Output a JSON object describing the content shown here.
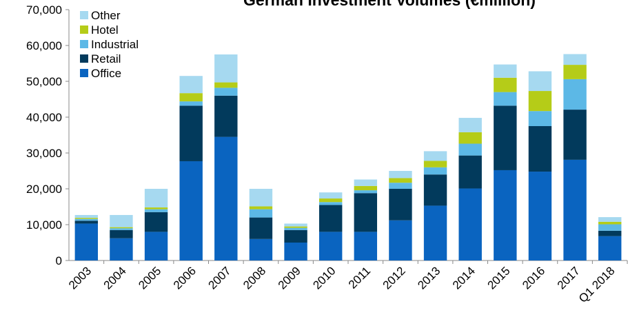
{
  "chart_data": {
    "type": "stacked_bar",
    "title": "German Investment Volumes (€million)",
    "categories": [
      "2003",
      "2004",
      "2005",
      "2006",
      "2007",
      "2008",
      "2009",
      "2010",
      "2011",
      "2012",
      "2013",
      "2014",
      "2015",
      "2016",
      "2017",
      "Q1 2018"
    ],
    "series": [
      {
        "name": "Office",
        "color": "#0a64c0",
        "values": [
          10300,
          6200,
          8000,
          27700,
          34500,
          6000,
          5000,
          8000,
          8000,
          11200,
          15300,
          20100,
          25200,
          24800,
          28100,
          6800
        ]
      },
      {
        "name": "Retail",
        "color": "#023a5c",
        "values": [
          800,
          2300,
          5500,
          15500,
          11500,
          6000,
          3500,
          7500,
          10800,
          8800,
          8700,
          9200,
          18000,
          12700,
          14000,
          1500
        ]
      },
      {
        "name": "Industrial",
        "color": "#5cb8e6",
        "values": [
          500,
          500,
          800,
          1200,
          2200,
          2300,
          600,
          800,
          800,
          1700,
          2000,
          3300,
          3800,
          4200,
          8500,
          1800
        ]
      },
      {
        "name": "Hotel",
        "color": "#b5cc18",
        "values": [
          300,
          300,
          500,
          2300,
          1500,
          800,
          400,
          1000,
          1200,
          1300,
          1800,
          3200,
          4000,
          5600,
          4000,
          700
        ]
      },
      {
        "name": "Other",
        "color": "#a6d9f0",
        "values": [
          800,
          3400,
          5200,
          4800,
          7800,
          4900,
          800,
          1700,
          1800,
          2000,
          2700,
          4000,
          3700,
          5500,
          3000,
          1300
        ]
      }
    ],
    "ylim": [
      0,
      70000
    ],
    "yticks": [
      0,
      {
        "value": 10000,
        "label": "10,000"
      },
      {
        "value": 20000,
        "label": "20,000"
      },
      {
        "value": 30000,
        "label": "30,000"
      },
      {
        "value": 40000,
        "label": "40,000"
      },
      {
        "value": 50000,
        "label": "50,000"
      },
      {
        "value": 60000,
        "label": "60,000"
      },
      {
        "value": 70000,
        "label": "70,000"
      }
    ],
    "legend": "top-left"
  }
}
